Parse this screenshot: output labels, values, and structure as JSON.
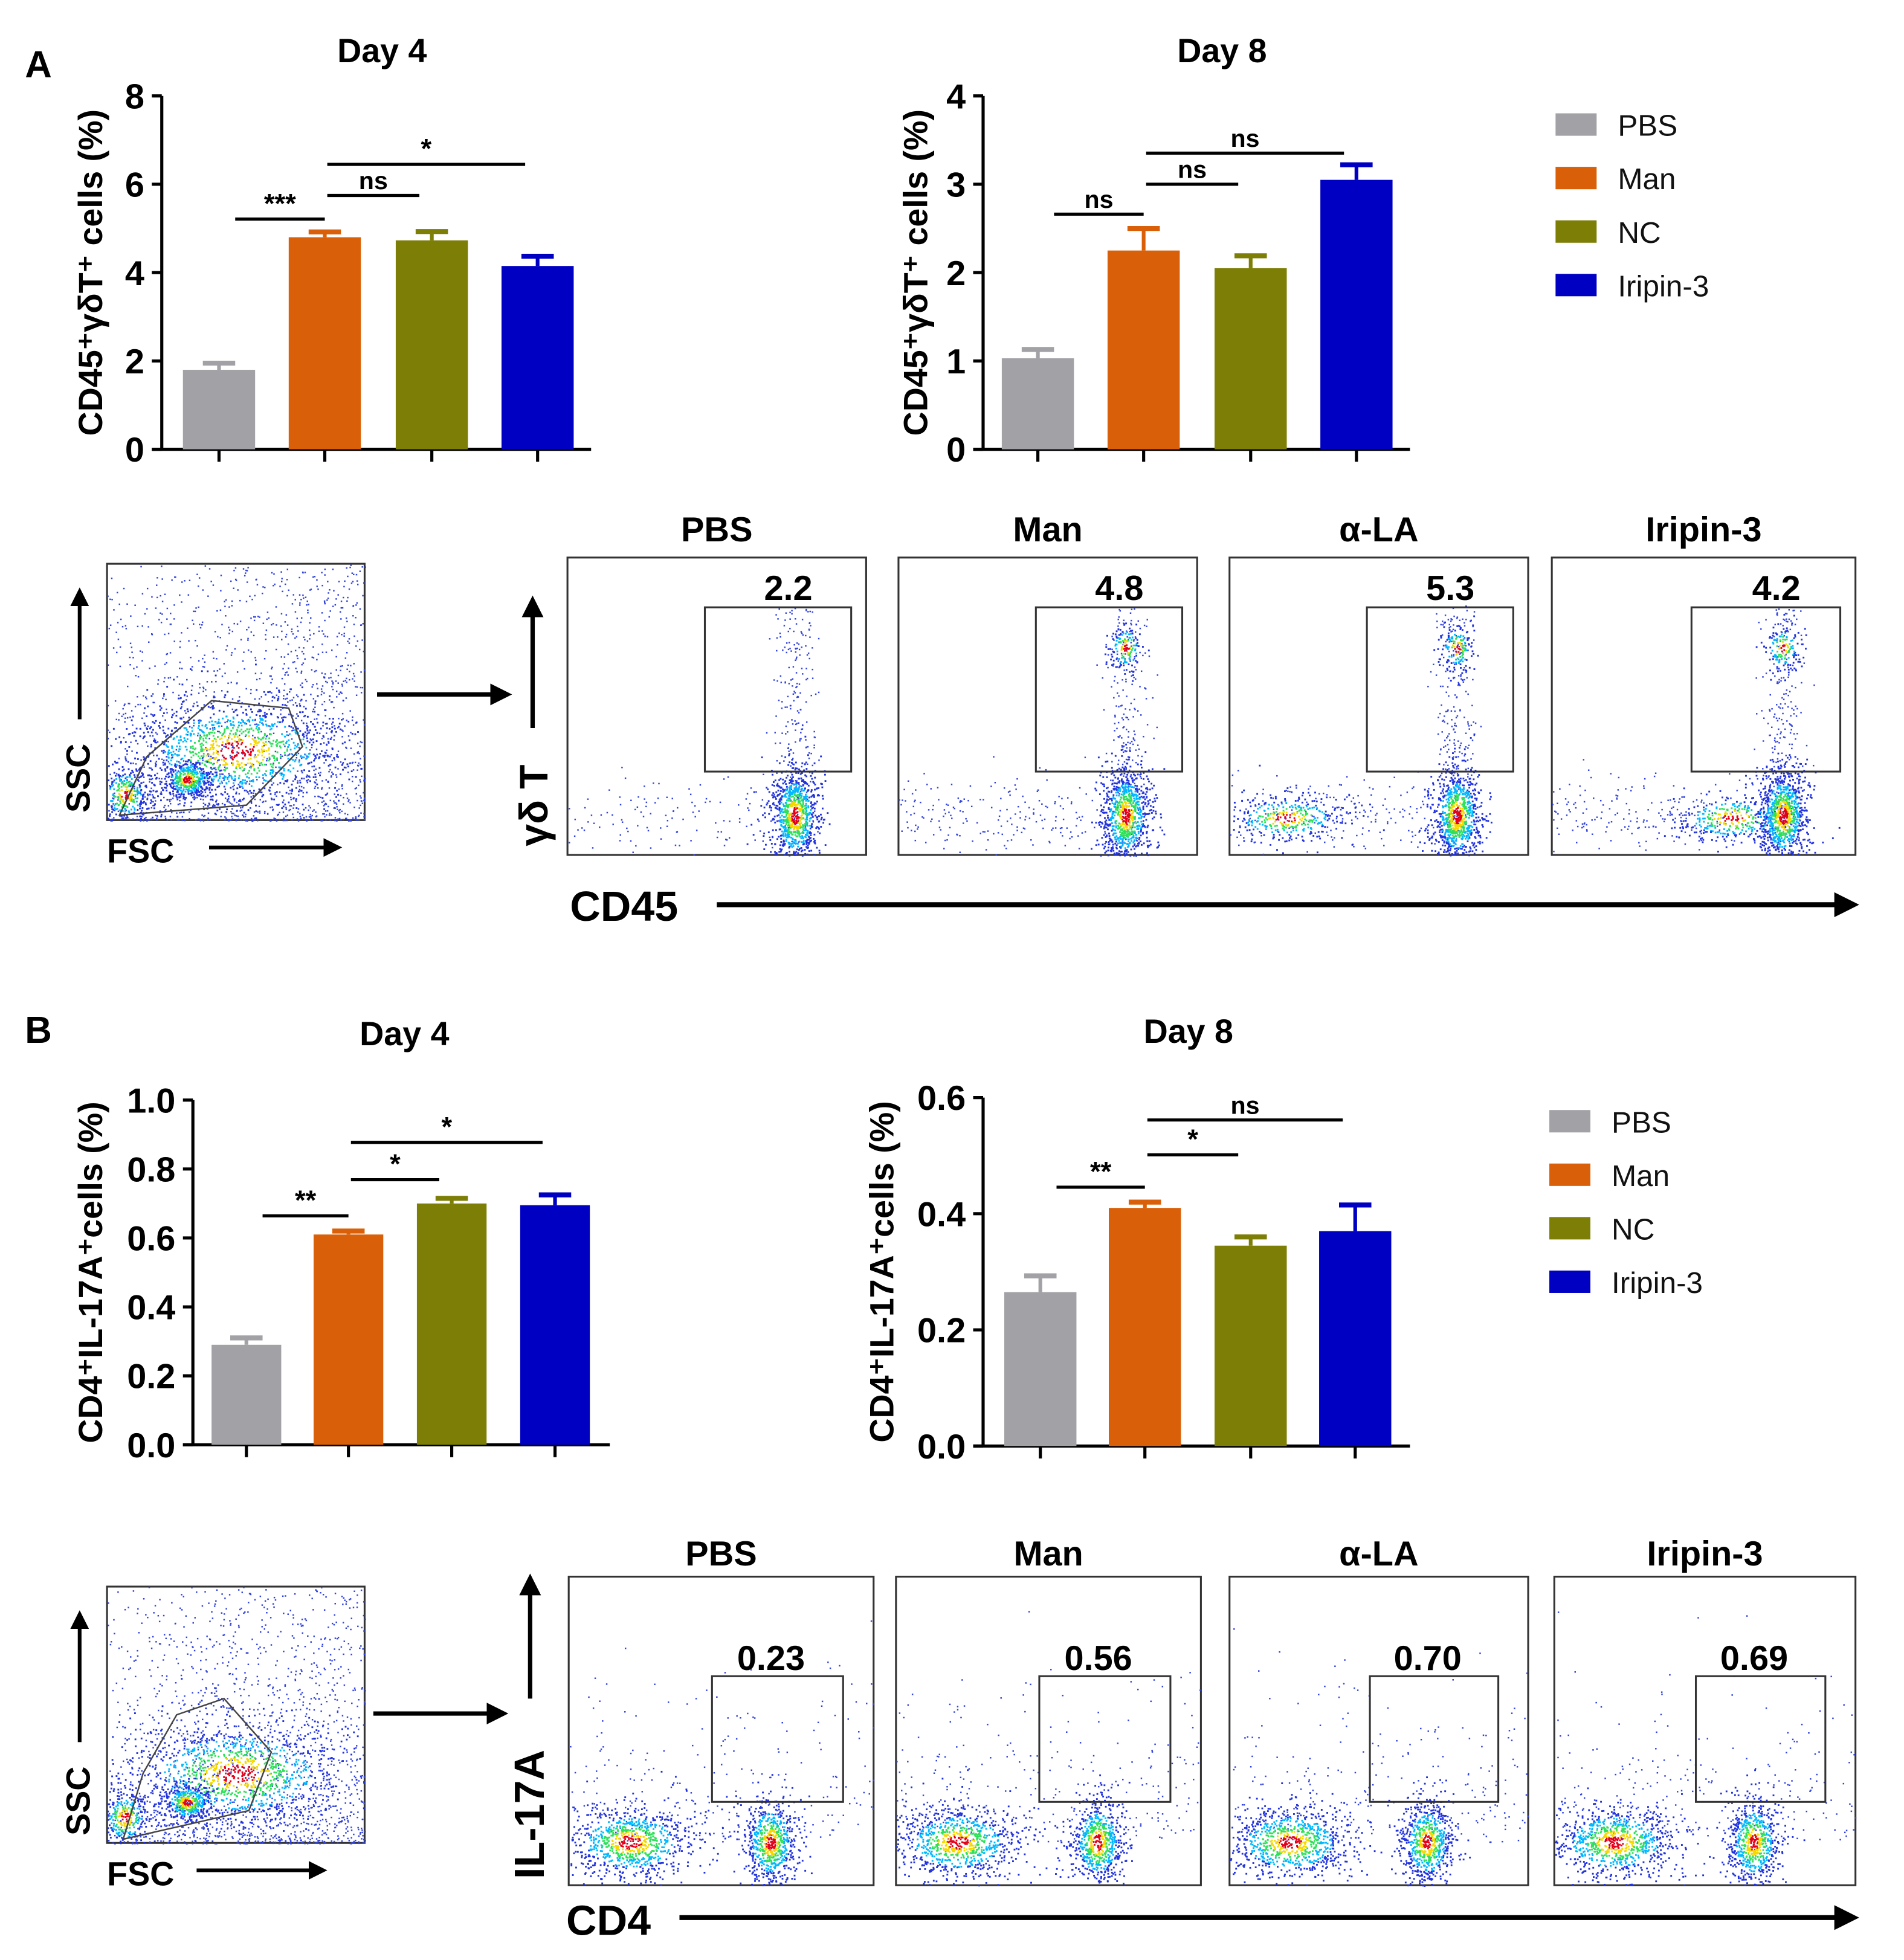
{
  "panels": {
    "a": "A",
    "b": "B"
  },
  "legend": {
    "groups": [
      "PBS",
      "Man",
      "NC",
      "Iripin-3"
    ]
  },
  "colors": {
    "PBS": "#a2a2a6",
    "Man": "#d96008",
    "NC": "#7c7e06",
    "Iripin-3": "#0000c2"
  },
  "chart_data": [
    {
      "type": "bar",
      "panel": "A",
      "title": "Day 4",
      "ylabel": "CD45⁺γδT⁺ cells (%)",
      "ylim": [
        0,
        8
      ],
      "yticks": [
        "0",
        "2",
        "4",
        "6",
        "8"
      ],
      "categories": [
        "PBS",
        "Man",
        "NC",
        "Iripin-3"
      ],
      "values": [
        1.8,
        4.8,
        4.73,
        4.15
      ],
      "errors": [
        0.15,
        0.12,
        0.2,
        0.22
      ],
      "significance": [
        {
          "from": 0,
          "to": 1,
          "label": "***"
        },
        {
          "from": 1,
          "to": 2,
          "label": "ns"
        },
        {
          "from": 1,
          "to": 3,
          "label": "*"
        }
      ]
    },
    {
      "type": "bar",
      "panel": "A",
      "title": "Day 8",
      "ylabel": "CD45⁺γδT⁺ cells (%)",
      "ylim": [
        0,
        4
      ],
      "yticks": [
        "0",
        "1",
        "2",
        "3",
        "4"
      ],
      "categories": [
        "PBS",
        "Man",
        "NC",
        "Iripin-3"
      ],
      "values": [
        1.03,
        2.25,
        2.05,
        3.05
      ],
      "errors": [
        0.1,
        0.25,
        0.14,
        0.17
      ],
      "significance": [
        {
          "from": 0,
          "to": 1,
          "label": "ns"
        },
        {
          "from": 1,
          "to": 2,
          "label": "ns"
        },
        {
          "from": 1,
          "to": 3,
          "label": "ns"
        }
      ]
    },
    {
      "type": "bar",
      "panel": "B",
      "title": "Day 4",
      "ylabel": "CD4⁺IL-17A⁺cells (%)",
      "ylim": [
        0,
        1
      ],
      "yticks": [
        "0.0",
        "0.2",
        "0.4",
        "0.6",
        "0.8",
        "1.0"
      ],
      "categories": [
        "PBS",
        "Man",
        "NC",
        "Iripin-3"
      ],
      "values": [
        0.29,
        0.61,
        0.7,
        0.695
      ],
      "errors": [
        0.02,
        0.01,
        0.015,
        0.03
      ],
      "significance": [
        {
          "from": 0,
          "to": 1,
          "label": "**"
        },
        {
          "from": 1,
          "to": 2,
          "label": "*"
        },
        {
          "from": 1,
          "to": 3,
          "label": "*"
        }
      ]
    },
    {
      "type": "bar",
      "panel": "B",
      "title": "Day 8",
      "ylabel": "CD4⁺IL-17A⁺cells (%)",
      "ylim": [
        0,
        0.6
      ],
      "yticks": [
        "0.0",
        "0.2",
        "0.4",
        "0.6"
      ],
      "categories": [
        "PBS",
        "Man",
        "NC",
        "Iripin-3"
      ],
      "values": [
        0.265,
        0.41,
        0.345,
        0.37
      ],
      "errors": [
        0.028,
        0.01,
        0.015,
        0.045
      ],
      "significance": [
        {
          "from": 0,
          "to": 1,
          "label": "**"
        },
        {
          "from": 1,
          "to": 2,
          "label": "*"
        },
        {
          "from": 1,
          "to": 3,
          "label": "ns"
        }
      ]
    }
  ],
  "flow": {
    "a": {
      "gating": {
        "x": "FSC",
        "y": "SSC"
      },
      "xlabel": "CD45",
      "ylabel": "γδ T",
      "plots": [
        {
          "title": "PBS",
          "value": "2.2"
        },
        {
          "title": "Man",
          "value": "4.8"
        },
        {
          "title": "α-LA",
          "value": "5.3"
        },
        {
          "title": "Iripin-3",
          "value": "4.2"
        }
      ]
    },
    "b": {
      "gating": {
        "x": "FSC",
        "y": "SSC"
      },
      "xlabel": "CD4",
      "ylabel": "IL-17A",
      "plots": [
        {
          "title": "PBS",
          "value": "0.23"
        },
        {
          "title": "Man",
          "value": "0.56"
        },
        {
          "title": "α-LA",
          "value": "0.70"
        },
        {
          "title": "Iripin-3",
          "value": "0.69"
        }
      ]
    }
  }
}
